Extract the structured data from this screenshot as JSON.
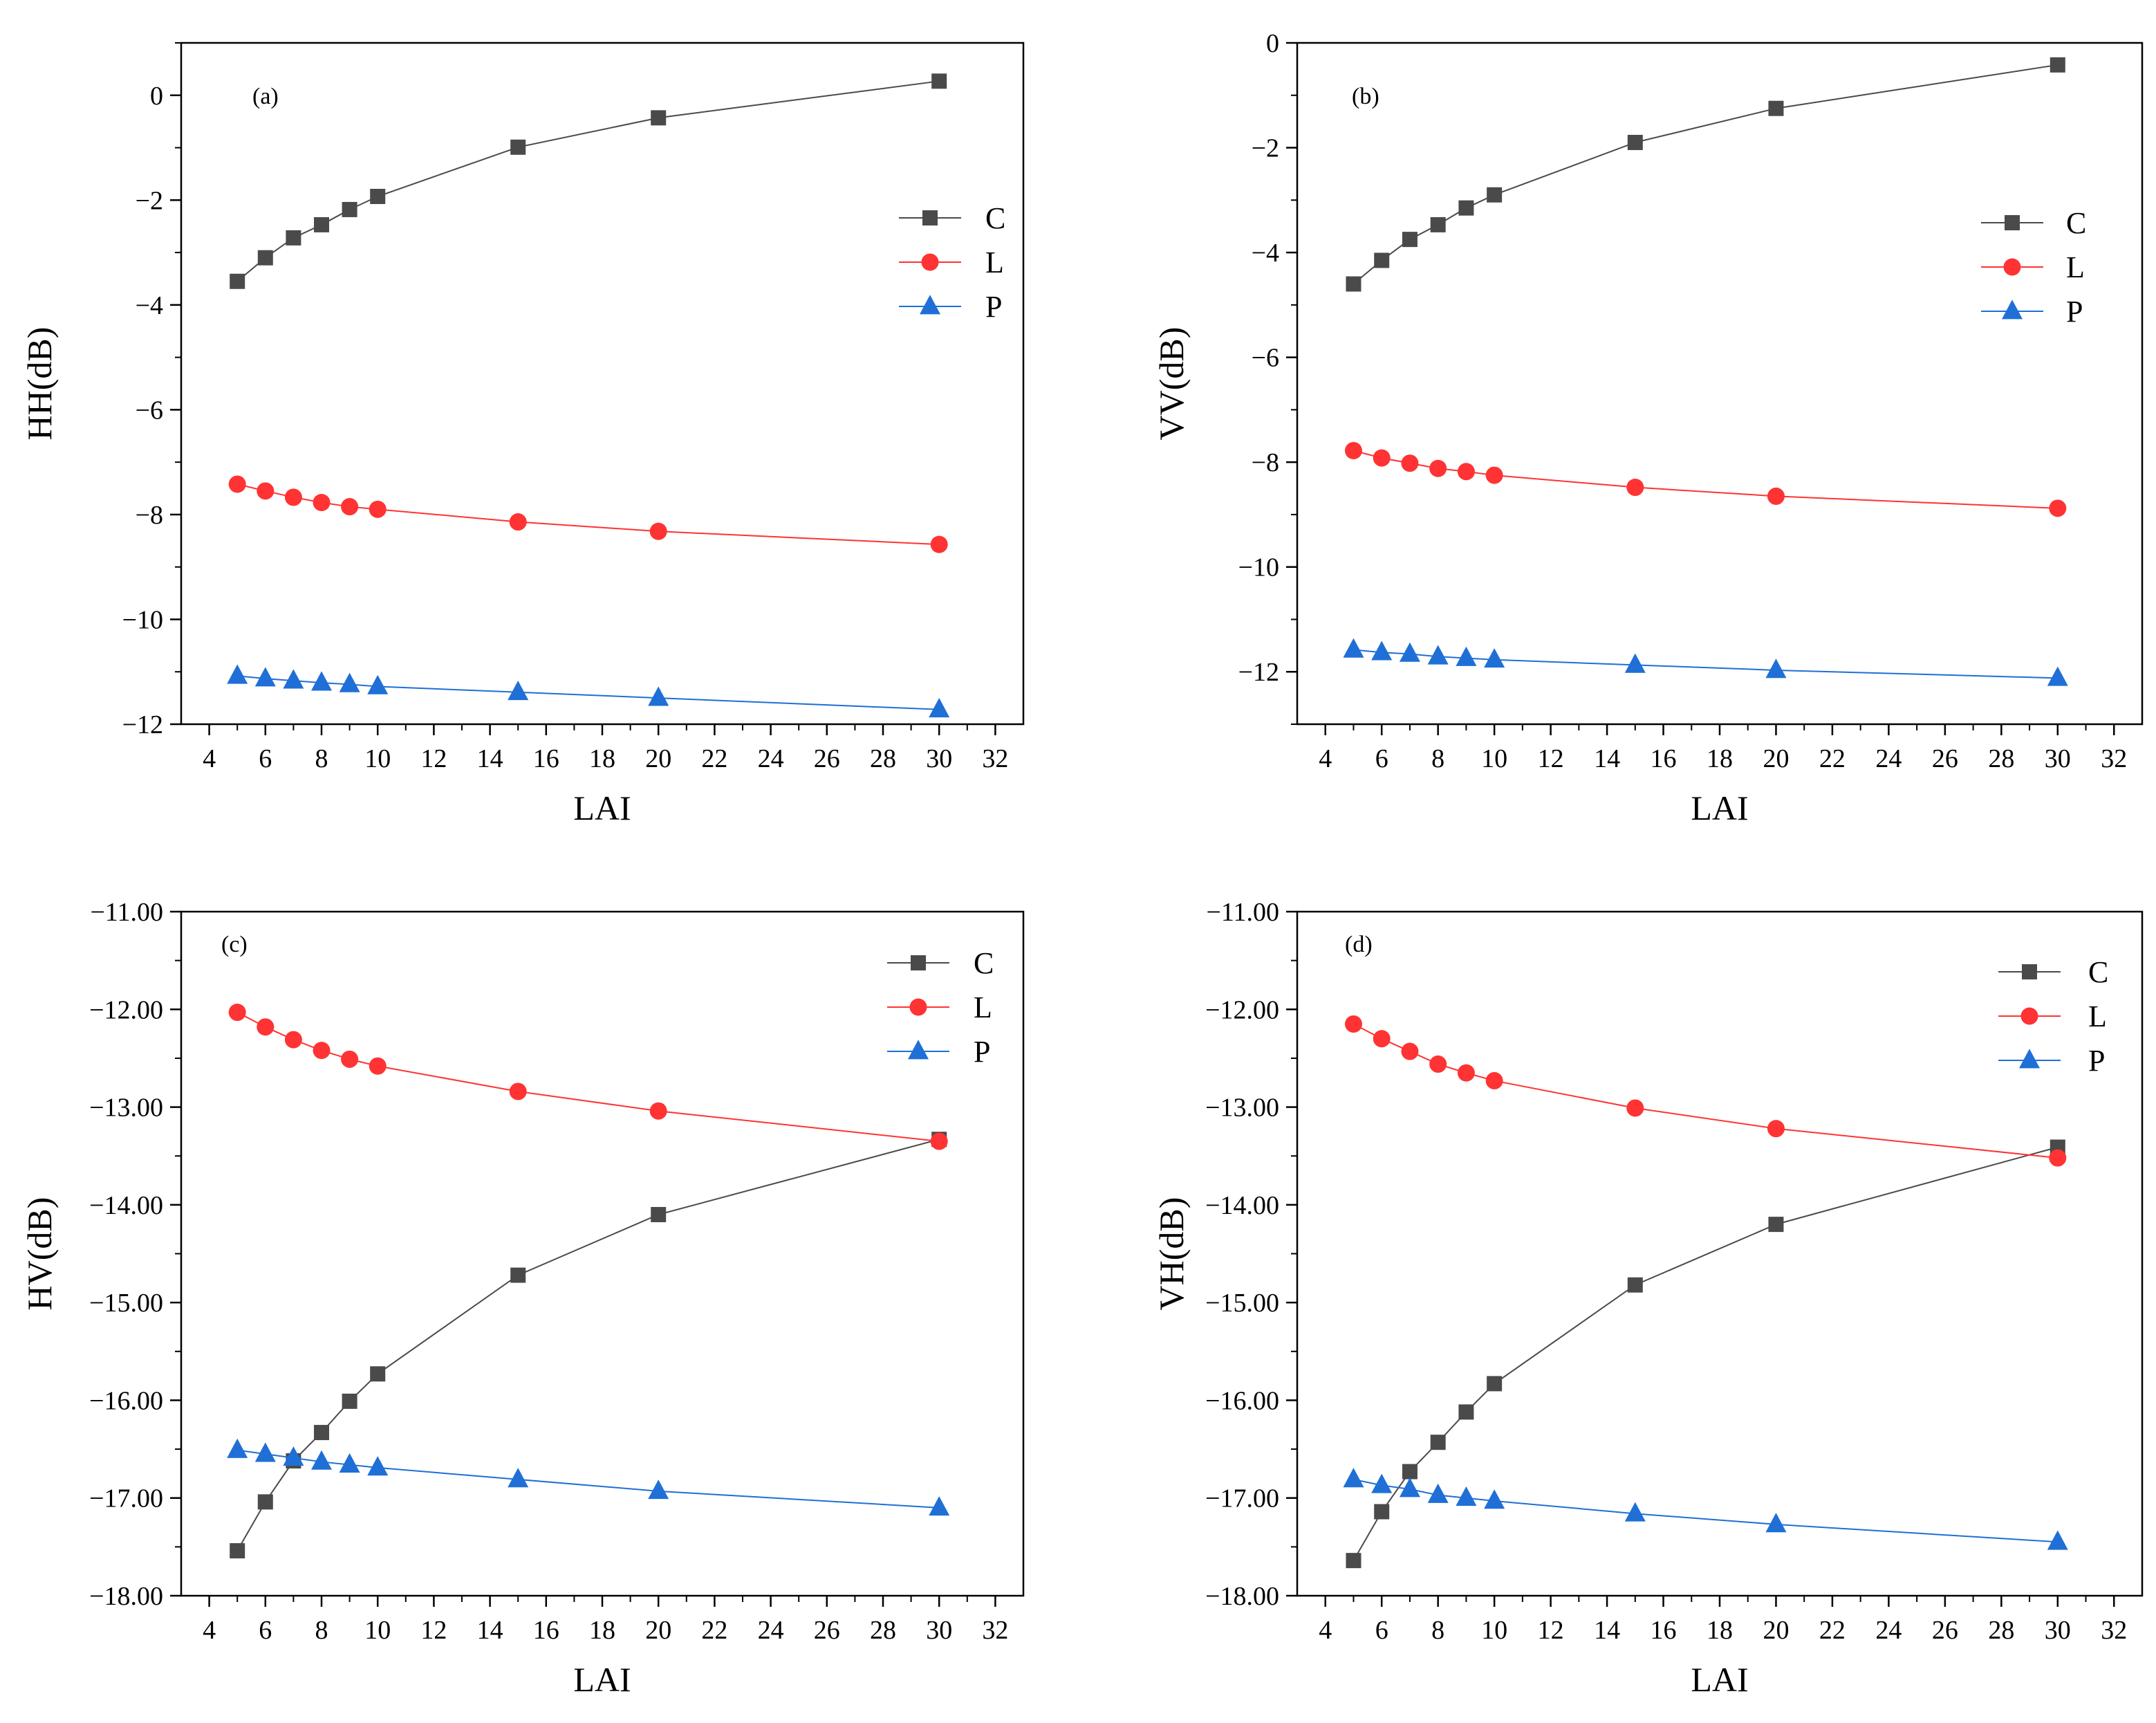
{
  "figure": {
    "xlabel": "LAI",
    "x_ticks": [
      "4",
      "6",
      "8",
      "10",
      "12",
      "14",
      "16",
      "18",
      "20",
      "22",
      "24",
      "26",
      "28",
      "30",
      "32"
    ]
  },
  "chart_data": [
    {
      "type": "line",
      "panel_label": "(a)",
      "xlabel": "LAI",
      "ylabel": "HH(dB)",
      "xlim": [
        3,
        33
      ],
      "ylim": [
        -12,
        1
      ],
      "y_ticks": [
        "0",
        "−2",
        "−4",
        "−6",
        "−8",
        "−10",
        "−12"
      ],
      "y_tick_values": [
        0,
        -2,
        -4,
        -6,
        -8,
        -10,
        -12
      ],
      "x": [
        5,
        6,
        7,
        8,
        9,
        10,
        15,
        20,
        30
      ],
      "legend_position": "right-middle",
      "series": [
        {
          "name": "C",
          "color": "#4a4a4a",
          "marker": "square",
          "values": [
            -3.55,
            -3.1,
            -2.72,
            -2.47,
            -2.18,
            -1.93,
            -0.99,
            -0.43,
            0.27
          ]
        },
        {
          "name": "L",
          "color": "#ff3333",
          "marker": "circle",
          "values": [
            -7.42,
            -7.55,
            -7.67,
            -7.77,
            -7.85,
            -7.9,
            -8.14,
            -8.32,
            -8.57
          ]
        },
        {
          "name": "P",
          "color": "#1f6fd6",
          "marker": "triangle",
          "values": [
            -11.08,
            -11.13,
            -11.17,
            -11.21,
            -11.24,
            -11.28,
            -11.39,
            -11.5,
            -11.72
          ]
        }
      ]
    },
    {
      "type": "line",
      "panel_label": "(b)",
      "xlabel": "LAI",
      "ylabel": "VV(dB)",
      "xlim": [
        3,
        33
      ],
      "ylim": [
        -13,
        0
      ],
      "y_ticks": [
        "0",
        "−2",
        "−4",
        "−6",
        "−8",
        "−10",
        "−12"
      ],
      "y_tick_values": [
        0,
        -2,
        -4,
        -6,
        -8,
        -10,
        -12
      ],
      "x": [
        5,
        6,
        7,
        8,
        9,
        10,
        15,
        20,
        30
      ],
      "legend_position": "right-middle",
      "series": [
        {
          "name": "C",
          "color": "#4a4a4a",
          "marker": "square",
          "values": [
            -4.6,
            -4.15,
            -3.75,
            -3.47,
            -3.15,
            -2.9,
            -1.9,
            -1.25,
            -0.42
          ]
        },
        {
          "name": "L",
          "color": "#ff3333",
          "marker": "circle",
          "values": [
            -7.78,
            -7.92,
            -8.02,
            -8.12,
            -8.18,
            -8.25,
            -8.48,
            -8.65,
            -8.88
          ]
        },
        {
          "name": "P",
          "color": "#1f6fd6",
          "marker": "triangle",
          "values": [
            -11.58,
            -11.63,
            -11.66,
            -11.71,
            -11.74,
            -11.77,
            -11.87,
            -11.97,
            -12.12
          ]
        }
      ]
    },
    {
      "type": "line",
      "panel_label": "(c)",
      "xlabel": "LAI",
      "ylabel": "HV(dB)",
      "xlim": [
        3,
        33
      ],
      "ylim": [
        -18,
        -11
      ],
      "y_ticks": [
        "−11.00",
        "−12.00",
        "−13.00",
        "−14.00",
        "−15.00",
        "−16.00",
        "−17.00",
        "−18.00"
      ],
      "y_tick_values": [
        -11,
        -12,
        -13,
        -14,
        -15,
        -16,
        -17,
        -18
      ],
      "x": [
        5,
        6,
        7,
        8,
        9,
        10,
        15,
        20,
        30
      ],
      "legend_position": "top-right",
      "series": [
        {
          "name": "C",
          "color": "#4a4a4a",
          "marker": "square",
          "values": [
            -17.54,
            -17.04,
            -16.62,
            -16.33,
            -16.01,
            -15.73,
            -14.72,
            -14.1,
            -13.33
          ]
        },
        {
          "name": "L",
          "color": "#ff3333",
          "marker": "circle",
          "values": [
            -12.03,
            -12.18,
            -12.31,
            -12.42,
            -12.51,
            -12.58,
            -12.84,
            -13.04,
            -13.35
          ]
        },
        {
          "name": "P",
          "color": "#1f6fd6",
          "marker": "triangle",
          "values": [
            -16.51,
            -16.55,
            -16.59,
            -16.63,
            -16.66,
            -16.69,
            -16.81,
            -16.93,
            -17.1
          ]
        }
      ]
    },
    {
      "type": "line",
      "panel_label": "(d)",
      "xlabel": "LAI",
      "ylabel": "VH(dB)",
      "xlim": [
        3,
        33
      ],
      "ylim": [
        -18,
        -11
      ],
      "y_ticks": [
        "−11.00",
        "−12.00",
        "−13.00",
        "−14.00",
        "−15.00",
        "−16.00",
        "−17.00",
        "−18.00"
      ],
      "y_tick_values": [
        -11,
        -12,
        -13,
        -14,
        -15,
        -16,
        -17,
        -18
      ],
      "x": [
        5,
        6,
        7,
        8,
        9,
        10,
        15,
        20,
        30
      ],
      "legend_position": "top-right",
      "series": [
        {
          "name": "C",
          "color": "#4a4a4a",
          "marker": "square",
          "values": [
            -17.64,
            -17.14,
            -16.73,
            -16.43,
            -16.12,
            -15.83,
            -14.82,
            -14.2,
            -13.41
          ]
        },
        {
          "name": "L",
          "color": "#ff3333",
          "marker": "circle",
          "values": [
            -12.15,
            -12.3,
            -12.43,
            -12.56,
            -12.65,
            -12.73,
            -13.01,
            -13.22,
            -13.52
          ]
        },
        {
          "name": "P",
          "color": "#1f6fd6",
          "marker": "triangle",
          "values": [
            -16.81,
            -16.87,
            -16.91,
            -16.97,
            -17.0,
            -17.03,
            -17.16,
            -17.27,
            -17.45
          ]
        }
      ]
    }
  ]
}
